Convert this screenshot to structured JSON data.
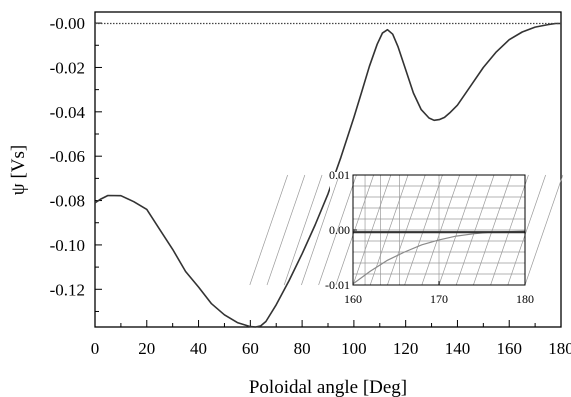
{
  "chart_data": [
    {
      "type": "line",
      "title": "",
      "xlabel": "Poloidal angle [Deg]",
      "ylabel": "ψ [Vs]",
      "xlim": [
        0,
        180
      ],
      "ylim": [
        -0.137,
        0.005
      ],
      "xticks": [
        0,
        20,
        40,
        60,
        80,
        100,
        120,
        140,
        160,
        180
      ],
      "xtick_labels": [
        "0",
        "20",
        "40",
        "60",
        "80",
        "100",
        "120",
        "140",
        "160",
        "180"
      ],
      "yticks": [
        0,
        -0.02,
        -0.04,
        -0.06,
        -0.08,
        -0.1,
        -0.12
      ],
      "ytick_labels": [
        "-0.00",
        "-0.02",
        "-0.04",
        "-0.06",
        "-0.08",
        "-0.10",
        "-0.12"
      ],
      "grid": false,
      "series": [
        {
          "style": "solid",
          "color": "#333333",
          "x": [
            0,
            2,
            5,
            10,
            15,
            20,
            25,
            30,
            35,
            40,
            45,
            50,
            55,
            60,
            62,
            64,
            66,
            70,
            75,
            80,
            85,
            90,
            95,
            100,
            103,
            106,
            109,
            111,
            113,
            115,
            117,
            120,
            123,
            126,
            129,
            131,
            133,
            135,
            137,
            140,
            145,
            150,
            155,
            160,
            165,
            170,
            175,
            178,
            180
          ],
          "y": [
            -0.081,
            -0.0795,
            -0.0777,
            -0.0778,
            -0.0805,
            -0.084,
            -0.093,
            -0.102,
            -0.112,
            -0.119,
            -0.1265,
            -0.1315,
            -0.135,
            -0.1368,
            -0.137,
            -0.1365,
            -0.1345,
            -0.127,
            -0.116,
            -0.104,
            -0.091,
            -0.077,
            -0.0605,
            -0.0425,
            -0.031,
            -0.0195,
            -0.0095,
            -0.0045,
            -0.003,
            -0.005,
            -0.0105,
            -0.021,
            -0.0315,
            -0.039,
            -0.0428,
            -0.0438,
            -0.0435,
            -0.0425,
            -0.0405,
            -0.037,
            -0.0285,
            -0.02,
            -0.013,
            -0.0075,
            -0.004,
            -0.0018,
            -0.0007,
            -0.0002,
            -0.0002
          ]
        },
        {
          "style": "dotted",
          "color": "#444444",
          "x": [
            0,
            180
          ],
          "y": [
            -0.0002,
            -0.0002
          ]
        }
      ]
    },
    {
      "type": "line",
      "title": "",
      "xlim": [
        160,
        180
      ],
      "ylim": [
        -0.01,
        0.01
      ],
      "xticks": [
        160,
        170,
        180
      ],
      "xtick_labels": [
        "160",
        "170",
        "180"
      ],
      "yticks": [
        0.01,
        0,
        -0.01
      ],
      "ytick_labels": [
        "0.01",
        "0.00",
        "-0.01"
      ],
      "grid": false,
      "series": [
        {
          "style": "solid",
          "color": "#8a8a8a",
          "x": [
            160,
            162,
            164,
            166,
            168,
            170,
            172,
            174,
            176,
            178,
            180
          ],
          "y": [
            -0.0098,
            -0.0075,
            -0.0055,
            -0.004,
            -0.0027,
            -0.0018,
            -0.0011,
            -0.0007,
            -0.0004,
            -0.0003,
            -0.0002
          ]
        },
        {
          "style": "solid",
          "color": "#333333",
          "x": [
            160,
            180
          ],
          "y": [
            -0.0004,
            -0.0004
          ]
        }
      ]
    }
  ]
}
